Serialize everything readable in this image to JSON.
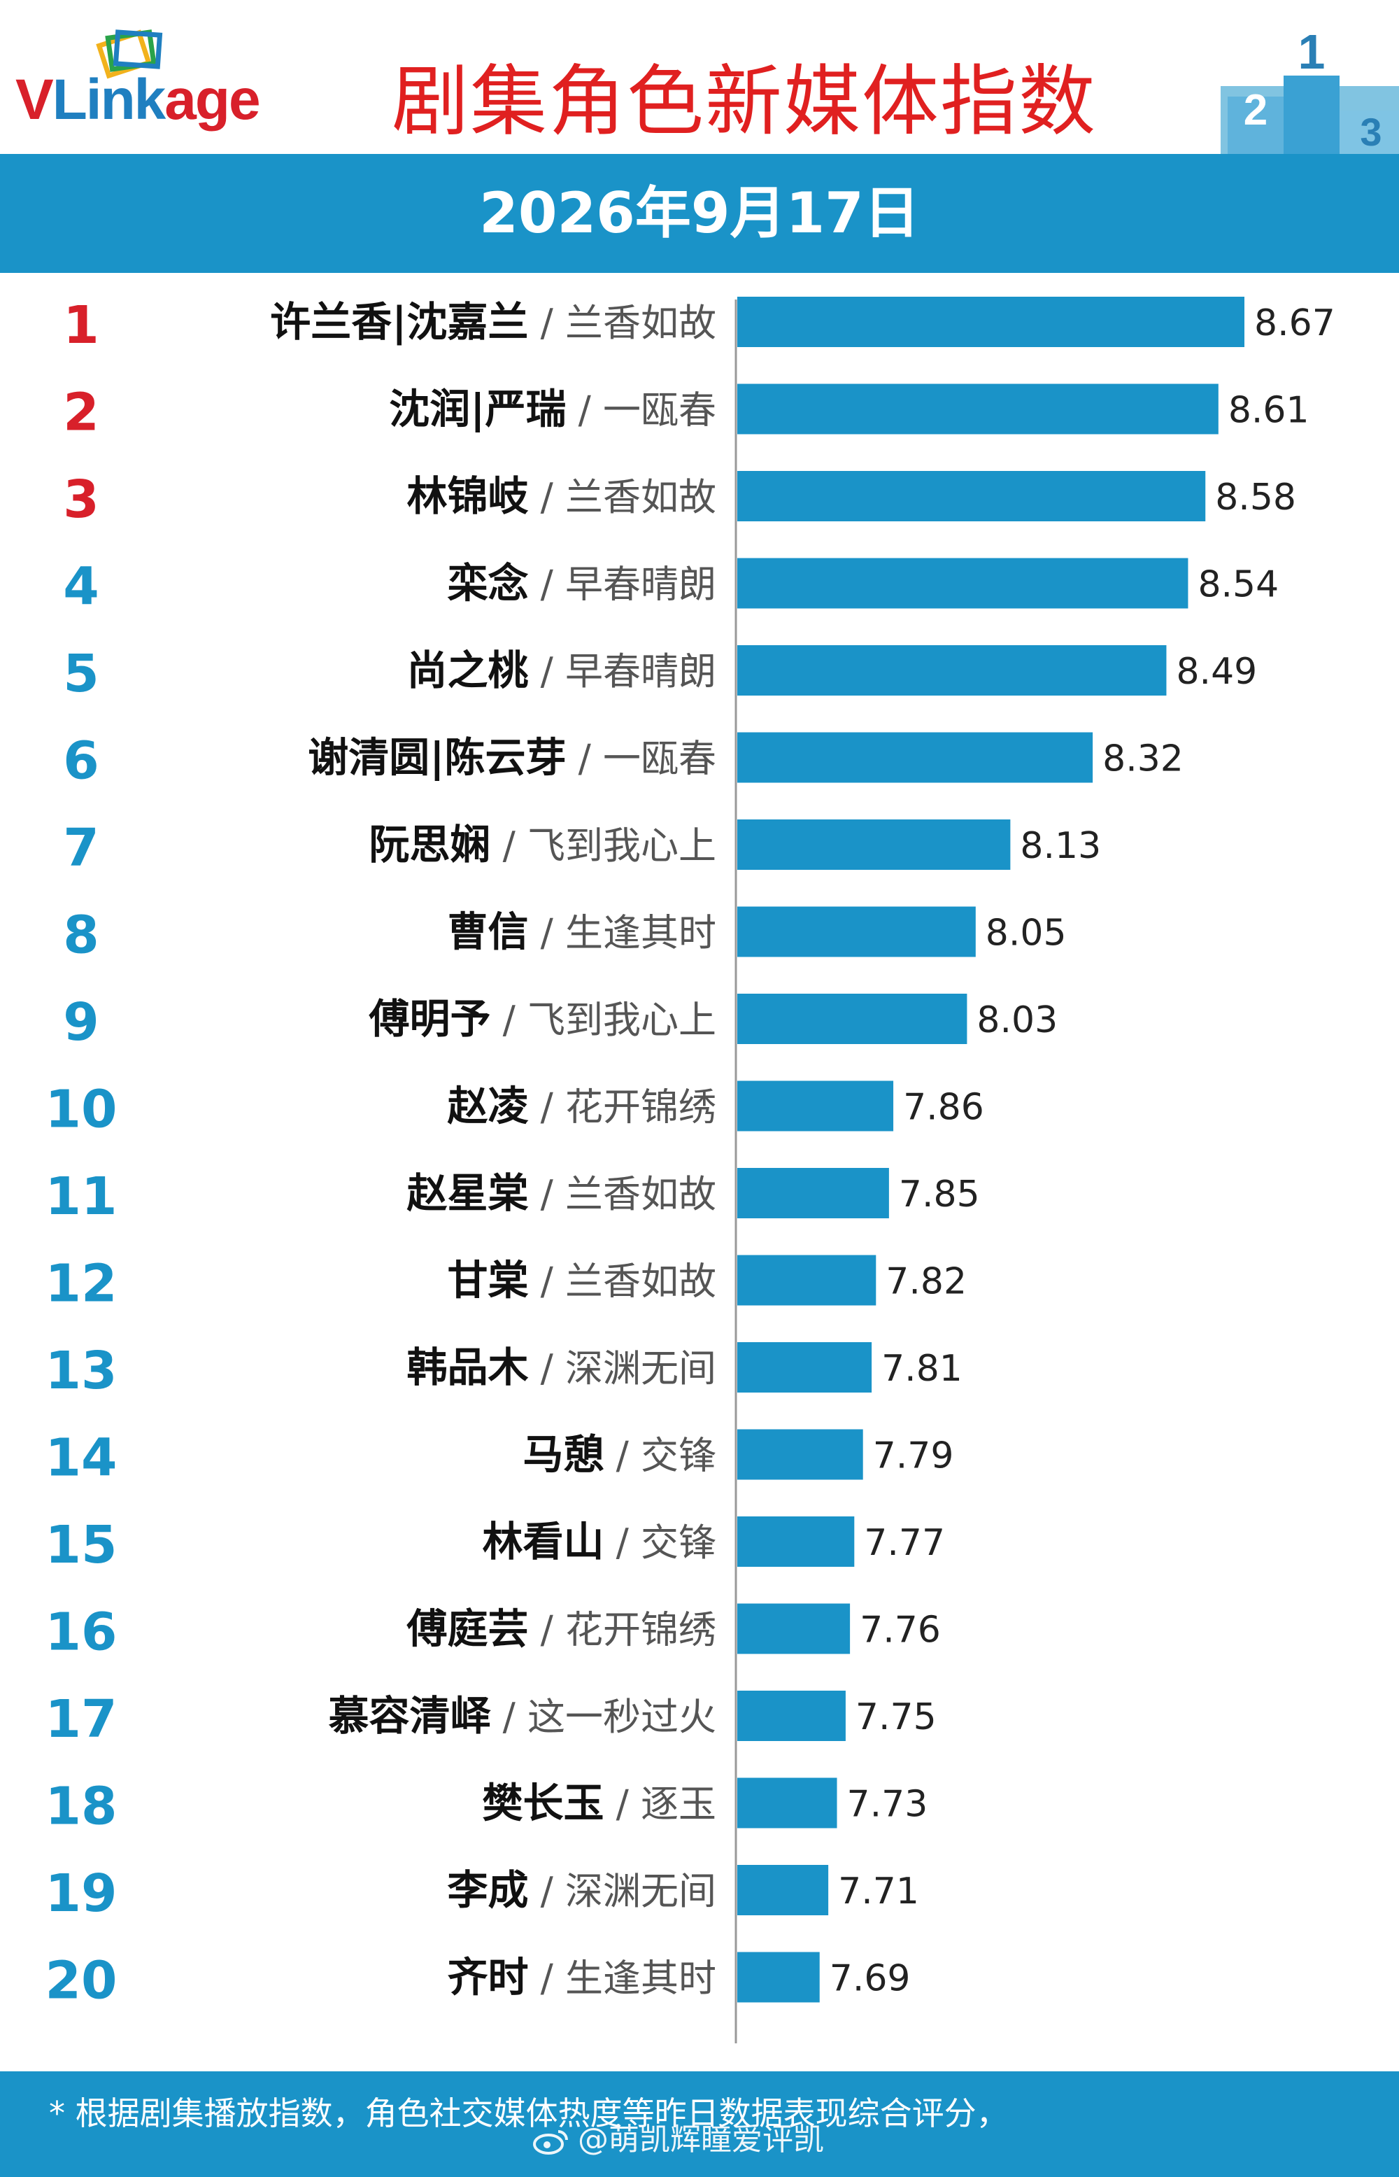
{
  "header": {
    "logo_text_v": "V",
    "logo_text_link": "Link",
    "logo_text_age": "age",
    "title": "剧集角色新媒体指数",
    "date": "2026年9月17日"
  },
  "colors": {
    "bar": "#1a93c8",
    "band": "#1a93c8",
    "rank_top": "#d8202a",
    "rank": "#1a93c8",
    "title": "#e02020"
  },
  "chart_data": {
    "type": "bar",
    "orientation": "horizontal",
    "series": [
      {
        "rank": "1",
        "name": "许兰香|沈嘉兰",
        "drama": "兰香如故",
        "value": 8.67
      },
      {
        "rank": "2",
        "name": "沈润|严瑞",
        "drama": "一瓯春",
        "value": 8.61
      },
      {
        "rank": "3",
        "name": "林锦岐",
        "drama": "兰香如故",
        "value": 8.58
      },
      {
        "rank": "4",
        "name": "栾念",
        "drama": "早春晴朗",
        "value": 8.54
      },
      {
        "rank": "5",
        "name": "尚之桃",
        "drama": "早春晴朗",
        "value": 8.49
      },
      {
        "rank": "6",
        "name": "谢清圆|陈云芽",
        "drama": "一瓯春",
        "value": 8.32
      },
      {
        "rank": "7",
        "name": "阮思娴",
        "drama": "飞到我心上",
        "value": 8.13
      },
      {
        "rank": "8",
        "name": "曹信",
        "drama": "生逢其时",
        "value": 8.05
      },
      {
        "rank": "9",
        "name": "傅明予",
        "drama": "飞到我心上",
        "value": 8.03
      },
      {
        "rank": "10",
        "name": "赵凌",
        "drama": "花开锦绣",
        "value": 7.86
      },
      {
        "rank": "11",
        "name": "赵星棠",
        "drama": "兰香如故",
        "value": 7.85
      },
      {
        "rank": "12",
        "name": "甘棠",
        "drama": "兰香如故",
        "value": 7.82
      },
      {
        "rank": "13",
        "name": "韩品木",
        "drama": "深渊无间",
        "value": 7.81
      },
      {
        "rank": "14",
        "name": "马憩",
        "drama": "交锋",
        "value": 7.79
      },
      {
        "rank": "15",
        "name": "林看山",
        "drama": "交锋",
        "value": 7.77
      },
      {
        "rank": "16",
        "name": "傅庭芸",
        "drama": "花开锦绣",
        "value": 7.76
      },
      {
        "rank": "17",
        "name": "慕容清峄",
        "drama": "这一秒过火",
        "value": 7.75
      },
      {
        "rank": "18",
        "name": "樊长玉",
        "drama": "逐玉",
        "value": 7.73
      },
      {
        "rank": "19",
        "name": "李成",
        "drama": "深渊无间",
        "value": 7.71
      },
      {
        "rank": "20",
        "name": "齐时",
        "drama": "生逢其时",
        "value": 7.69
      }
    ],
    "xlim": [
      7.5,
      8.67
    ],
    "grid": false,
    "legend": "none"
  },
  "footer": {
    "note": "* 根据剧集播放指数，角色社交媒体热度等昨日数据表现综合评分，",
    "watermark": "@萌凯辉瞳爱评凯"
  }
}
